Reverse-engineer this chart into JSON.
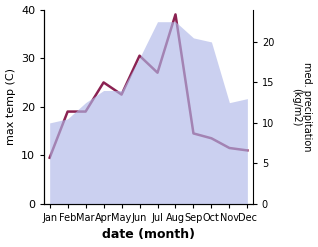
{
  "months": [
    "Jan",
    "Feb",
    "Mar",
    "Apr",
    "May",
    "Jun",
    "Jul",
    "Aug",
    "Sep",
    "Oct",
    "Nov",
    "Dec"
  ],
  "temp_max": [
    9.5,
    19.0,
    19.0,
    25.0,
    22.5,
    30.5,
    27.0,
    39.0,
    14.5,
    13.5,
    11.5,
    11.0
  ],
  "precip": [
    10.0,
    10.5,
    12.5,
    14.0,
    14.0,
    18.0,
    22.5,
    22.5,
    20.5,
    20.0,
    12.5,
    13.0
  ],
  "temp_ylim": [
    0,
    40
  ],
  "precip_ylim": [
    0,
    24
  ],
  "temp_yticks": [
    0,
    10,
    20,
    30,
    40
  ],
  "precip_yticks": [
    0,
    5,
    10,
    15,
    20
  ],
  "fill_color": "#b0b8e8",
  "fill_alpha": 0.65,
  "line_color": "#8b2252",
  "line_width": 1.8,
  "xlabel": "date (month)",
  "ylabel_left": "max temp (C)",
  "ylabel_right": "med. precipitation\n(kg/m2)",
  "bg_color": "#ffffff"
}
